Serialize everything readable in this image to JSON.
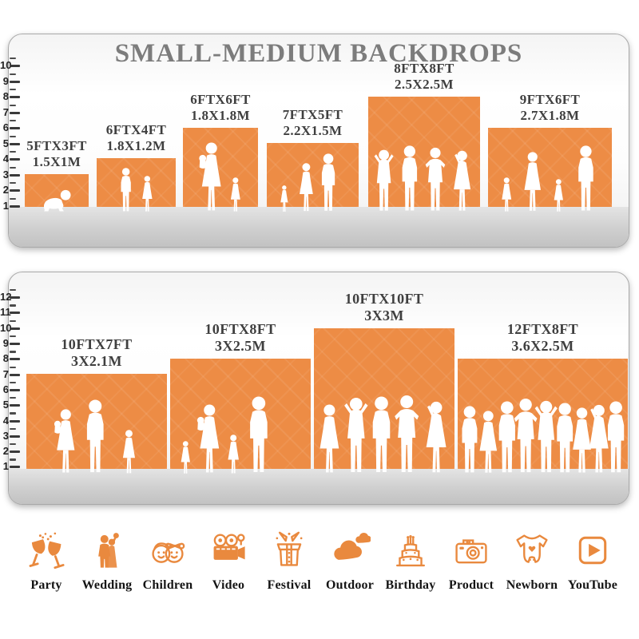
{
  "title": "SMALL-MEDIUM BACKDROPS",
  "colors": {
    "bar_orange": "#ED8C45",
    "icon_orange": "#E9893E",
    "title_gray": "#7C7C7C",
    "label_dark": "#3F3F3F"
  },
  "top_panel": {
    "ruler_numbers": [
      "10",
      "9",
      "8",
      "7",
      "6",
      "5",
      "4",
      "3",
      "2",
      "1"
    ],
    "bars": [
      {
        "size_ft": "5FTX3FT",
        "size_m": "1.5X1M",
        "width_ft": 5,
        "height_ft": 3
      },
      {
        "size_ft": "6FTX4FT",
        "size_m": "1.8X1.2M",
        "width_ft": 6,
        "height_ft": 4
      },
      {
        "size_ft": "6FTX6FT",
        "size_m": "1.8X1.8M",
        "width_ft": 6,
        "height_ft": 6
      },
      {
        "size_ft": "7FTX5FT",
        "size_m": "2.2X1.5M",
        "width_ft": 7,
        "height_ft": 5
      },
      {
        "size_ft": "8FTX8FT",
        "size_m": "2.5X2.5M",
        "width_ft": 8,
        "height_ft": 8
      },
      {
        "size_ft": "9FTX6FT",
        "size_m": "2.7X1.8M",
        "width_ft": 9,
        "height_ft": 6
      }
    ]
  },
  "bottom_panel": {
    "ruler_numbers": [
      "12",
      "11",
      "10",
      "9",
      "8",
      "7",
      "6",
      "5",
      "4",
      "3",
      "2",
      "1"
    ],
    "bars": [
      {
        "size_ft": "10FTX7FT",
        "size_m": "3X2.1M",
        "width_ft": 10,
        "height_ft": 7
      },
      {
        "size_ft": "10FTX8FT",
        "size_m": "3X2.5M",
        "width_ft": 10,
        "height_ft": 8
      },
      {
        "size_ft": "10FTX10FT",
        "size_m": "3X3M",
        "width_ft": 10,
        "height_ft": 10
      },
      {
        "size_ft": "12FTX8FT",
        "size_m": "3.6X2.5M",
        "width_ft": 12,
        "height_ft": 8
      }
    ]
  },
  "categories": [
    {
      "label": "Party"
    },
    {
      "label": "Wedding"
    },
    {
      "label": "Children"
    },
    {
      "label": "Video"
    },
    {
      "label": "Festival"
    },
    {
      "label": "Outdoor"
    },
    {
      "label": "Birthday"
    },
    {
      "label": "Product"
    },
    {
      "label": "Newborn"
    },
    {
      "label": "YouTube"
    }
  ]
}
